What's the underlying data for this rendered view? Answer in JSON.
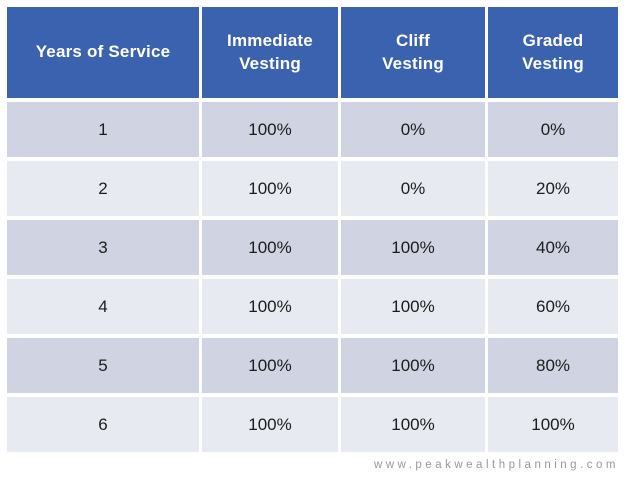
{
  "chart_data": {
    "type": "table",
    "columns": [
      "Years of Service",
      "Immediate Vesting",
      "Cliff Vesting",
      "Graded Vesting"
    ],
    "rows": [
      [
        "1",
        "100%",
        "0%",
        "0%"
      ],
      [
        "2",
        "100%",
        "0%",
        "20%"
      ],
      [
        "3",
        "100%",
        "100%",
        "40%"
      ],
      [
        "4",
        "100%",
        "100%",
        "60%"
      ],
      [
        "5",
        "100%",
        "100%",
        "80%"
      ],
      [
        "6",
        "100%",
        "100%",
        "100%"
      ]
    ],
    "layout": {
      "header_position": "top",
      "row_striping": "alternating",
      "grid_gaps": "white"
    }
  },
  "footer": {
    "website": "www.peakwealthplanning.com"
  },
  "colors": {
    "page_bg": "#ffffff",
    "header_bg": "#3b62ae",
    "header_text": "#ffffff",
    "row_odd_bg": "#cfd3e2",
    "row_even_bg": "#e7eaf1",
    "body_text": "#1c1c1c",
    "footer_text": "#999999"
  }
}
